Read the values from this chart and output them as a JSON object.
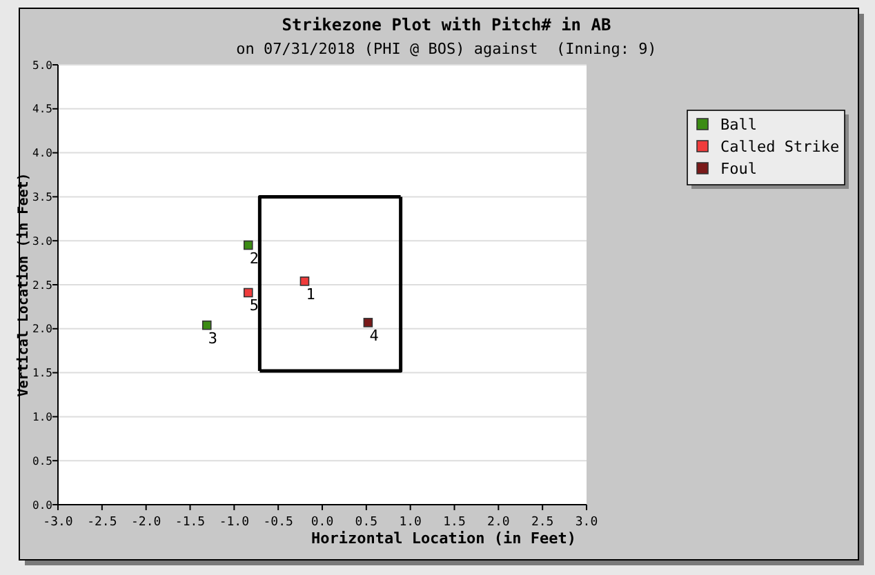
{
  "chart_data": {
    "type": "scatter",
    "title": "Strikezone Plot with Pitch# in AB",
    "subtitle": "on 07/31/2018 (PHI @ BOS) against  (Inning: 9)",
    "xlabel": "Horizontal Location (in Feet)",
    "ylabel": "Vertical Location (in Feet)",
    "xlim": [
      -3,
      3
    ],
    "xticks": [
      {
        "value": -3,
        "label": "-3.0"
      },
      {
        "value": -2.5,
        "label": "-2.5"
      },
      {
        "value": -2,
        "label": "-2.0"
      },
      {
        "value": -1.5,
        "label": "-1.5"
      },
      {
        "value": -1,
        "label": "-1.0"
      },
      {
        "value": -0.5,
        "label": "-0.5"
      },
      {
        "value": 0,
        "label": "0.0"
      },
      {
        "value": 0.5,
        "label": "0.5"
      },
      {
        "value": 1,
        "label": "1.0"
      },
      {
        "value": 1.5,
        "label": "1.5"
      },
      {
        "value": 2,
        "label": "2.0"
      },
      {
        "value": 2.5,
        "label": "2.5"
      },
      {
        "value": 3,
        "label": "3.0"
      }
    ],
    "ylim": [
      0,
      5
    ],
    "yticks": [
      {
        "value": 0,
        "label": "0.0"
      },
      {
        "value": 0.5,
        "label": "0.5"
      },
      {
        "value": 1,
        "label": "1.0"
      },
      {
        "value": 1.5,
        "label": "1.5"
      },
      {
        "value": 2,
        "label": "2.0"
      },
      {
        "value": 2.5,
        "label": "2.5"
      },
      {
        "value": 3,
        "label": "3.0"
      },
      {
        "value": 3.5,
        "label": "3.5"
      },
      {
        "value": 4,
        "label": "4.0"
      },
      {
        "value": 4.5,
        "label": "4.5"
      },
      {
        "value": 5,
        "label": "5.0"
      }
    ],
    "grid": "y",
    "legend": "right",
    "marker": "square",
    "series": [
      {
        "name": "Ball",
        "color": "#3c8c14",
        "x": [
          -0.84,
          -1.31
        ],
        "values": [
          2.95,
          2.04
        ]
      },
      {
        "name": "Called Strike",
        "color": "#f03c3c",
        "x": [
          -0.2,
          -0.84
        ],
        "values": [
          2.54,
          2.41
        ]
      },
      {
        "name": "Foul",
        "color": "#7a1a1a",
        "x": [
          0.52
        ],
        "values": [
          2.07
        ]
      },
      {
        "type": "line",
        "marker": "none",
        "color": "#000000",
        "x": [
          -0.71,
          0.89,
          0.89
        ],
        "values": [
          1.52,
          1.52,
          3.5
        ]
      },
      {
        "type": "line",
        "marker": "none",
        "color": "#000000",
        "x": [
          0.89,
          -0.71,
          -0.71
        ],
        "values": [
          3.5,
          3.5,
          1.52
        ]
      }
    ],
    "annotations": [
      {
        "text": "1",
        "x": -0.2,
        "y": 2.54
      },
      {
        "text": "2",
        "x": -0.84,
        "y": 2.95
      },
      {
        "text": "3",
        "x": -1.31,
        "y": 2.04
      },
      {
        "text": "4",
        "x": 0.52,
        "y": 2.07
      },
      {
        "text": "5",
        "x": -0.84,
        "y": 2.41
      }
    ]
  }
}
